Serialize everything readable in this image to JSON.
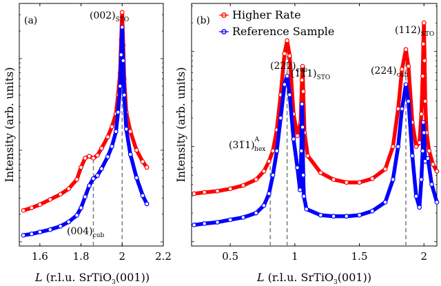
{
  "colors": {
    "higher": "#ff0000",
    "reference": "#0000ff",
    "dashed": "#808080"
  },
  "chart_data": [
    {
      "type": "line",
      "panel_label": "(a)",
      "xlabel": "L (r.l.u. SrTiO3(001))",
      "ylabel": "Intensity (arb. units)",
      "xlim": [
        1.5,
        2.2
      ],
      "y_scale": "log",
      "xticks": [
        "1.6",
        "1.8",
        "2",
        "2.2"
      ],
      "xtick_values": [
        1.6,
        1.8,
        2.0,
        2.2
      ],
      "grid": false,
      "annotations": [
        {
          "text": "(002)",
          "sub": "STO",
          "x": 2.0
        },
        {
          "text": "(004)",
          "sub": "cub",
          "x": 1.86
        }
      ],
      "dashed_lines": [
        1.86,
        2.0
      ],
      "series": [
        {
          "name": "Higher Rate",
          "color_key": "higher",
          "x": [
            1.52,
            1.56,
            1.6,
            1.65,
            1.7,
            1.74,
            1.78,
            1.8,
            1.82,
            1.84,
            1.86,
            1.88,
            1.9,
            1.93,
            1.95,
            1.97,
            1.98,
            1.99,
            1.995,
            2.0,
            2.005,
            2.01,
            2.02,
            2.04,
            2.07,
            2.1,
            2.12
          ],
          "y": [
            2.2,
            2.35,
            2.55,
            2.9,
            3.3,
            3.8,
            4.8,
            6.5,
            8.2,
            8.6,
            8.2,
            8.8,
            10.5,
            14.0,
            18.0,
            25.0,
            40.0,
            70.0,
            160.0,
            320.0,
            140.0,
            60.0,
            26.0,
            16.0,
            10.0,
            7.5,
            6.5
          ]
        },
        {
          "name": "Reference Sample",
          "color_key": "reference",
          "x": [
            1.52,
            1.56,
            1.6,
            1.65,
            1.7,
            1.74,
            1.78,
            1.8,
            1.82,
            1.84,
            1.86,
            1.88,
            1.9,
            1.93,
            1.95,
            1.97,
            1.98,
            1.99,
            1.995,
            2.0,
            2.005,
            2.01,
            2.02,
            2.04,
            2.07,
            2.1,
            2.12
          ],
          "y": [
            1.18,
            1.22,
            1.28,
            1.36,
            1.48,
            1.65,
            1.95,
            2.35,
            3.1,
            4.1,
            4.9,
            5.3,
            6.3,
            8.5,
            11.0,
            16.0,
            26.0,
            50.0,
            110.0,
            220.0,
            95.0,
            40.0,
            17.0,
            9.0,
            5.0,
            3.2,
            2.6
          ]
        }
      ]
    },
    {
      "type": "line",
      "panel_label": "(b)",
      "xlabel": "L (r.l.u. SrTiO3(001))",
      "ylabel": "Intensity (arb. units)",
      "xlim": [
        0.2,
        2.1
      ],
      "y_scale": "log",
      "xticks": [
        "0.5",
        "1",
        "1.5",
        "2"
      ],
      "xtick_values": [
        0.5,
        1.0,
        1.5,
        2.0
      ],
      "grid": false,
      "legend": {
        "placement": "top-left",
        "entries": [
          "Higher Rate",
          "Reference Sample"
        ]
      },
      "annotations": [
        {
          "text": "(222)",
          "sub": "cub",
          "x": 0.94
        },
        {
          "text": "(111)",
          "sub": "STO",
          "x": 1.06
        },
        {
          "text": "(224)",
          "sub": "cub",
          "x": 1.86
        },
        {
          "text": "(112)",
          "sub": "STO",
          "x": 2.0
        },
        {
          "text": "(31̅1)",
          "sub": "hex",
          "sup": "A",
          "x": 0.81
        }
      ],
      "dashed_lines": [
        0.81,
        0.94,
        1.86
      ],
      "series": [
        {
          "name": "Higher Rate",
          "color_key": "higher",
          "x": [
            0.22,
            0.3,
            0.4,
            0.5,
            0.6,
            0.7,
            0.76,
            0.8,
            0.83,
            0.86,
            0.89,
            0.92,
            0.94,
            0.96,
            0.99,
            1.02,
            1.045,
            1.055,
            1.06,
            1.065,
            1.075,
            1.1,
            1.2,
            1.3,
            1.4,
            1.5,
            1.6,
            1.7,
            1.76,
            1.8,
            1.83,
            1.86,
            1.88,
            1.91,
            1.94,
            1.965,
            1.98,
            1.99,
            1.995,
            2.0,
            2.005,
            2.01,
            2.02,
            2.04,
            2.07,
            2.1
          ],
          "y": [
            3.2,
            3.3,
            3.4,
            3.6,
            3.9,
            4.5,
            5.5,
            7.0,
            9.0,
            15.0,
            35.0,
            95.0,
            130.0,
            90.0,
            22.0,
            13.0,
            18.0,
            50.0,
            70.0,
            38.0,
            14.0,
            8.0,
            5.3,
            4.5,
            4.2,
            4.2,
            4.6,
            5.8,
            10.0,
            25.0,
            65.0,
            105.0,
            70.0,
            18.0,
            10.0,
            11.0,
            22.0,
            55.0,
            120.0,
            200.0,
            80.0,
            30.0,
            14.0,
            9.0,
            6.5,
            5.5
          ]
        },
        {
          "name": "Reference Sample",
          "color_key": "reference",
          "x": [
            0.22,
            0.3,
            0.4,
            0.5,
            0.6,
            0.7,
            0.76,
            0.8,
            0.83,
            0.86,
            0.89,
            0.92,
            0.94,
            0.96,
            0.99,
            1.02,
            1.04,
            1.05,
            1.055,
            1.06,
            1.065,
            1.07,
            1.09,
            1.2,
            1.3,
            1.4,
            1.5,
            1.6,
            1.7,
            1.76,
            1.8,
            1.83,
            1.86,
            1.88,
            1.91,
            1.94,
            1.965,
            1.98,
            1.99,
            1.995,
            2.0,
            2.01,
            2.03,
            2.06,
            2.1
          ],
          "y": [
            1.5,
            1.55,
            1.6,
            1.7,
            1.8,
            2.0,
            2.4,
            3.2,
            5.0,
            9.0,
            20.0,
            45.0,
            55.0,
            35.0,
            12.0,
            6.0,
            3.5,
            9.0,
            28.0,
            16.0,
            5.0,
            3.0,
            2.2,
            1.9,
            1.85,
            1.85,
            1.9,
            2.1,
            2.6,
            4.5,
            10.0,
            25.0,
            45.0,
            30.0,
            8.0,
            3.0,
            2.3,
            4.5,
            9.0,
            18.0,
            14.0,
            7.0,
            7.5,
            4.0,
            2.6
          ]
        }
      ]
    }
  ]
}
